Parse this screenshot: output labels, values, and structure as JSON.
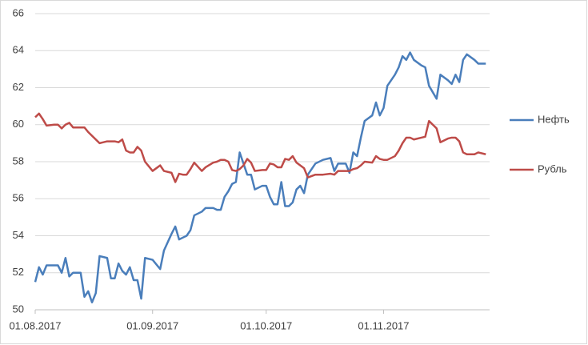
{
  "chart_data": {
    "type": "line",
    "x": [
      0,
      1,
      2,
      3,
      5,
      6,
      7,
      8,
      9,
      10,
      12,
      13,
      14,
      15,
      16,
      17,
      19,
      20,
      21,
      22,
      23,
      24,
      25,
      26,
      27,
      28,
      29,
      31,
      33,
      34,
      36,
      37,
      38,
      39,
      40,
      41,
      42,
      44,
      45,
      47,
      48,
      49,
      50,
      51,
      52,
      53,
      54,
      55,
      56,
      57,
      58,
      60,
      61,
      62,
      63,
      64,
      65,
      66,
      67,
      68,
      69,
      70,
      71,
      72,
      74,
      76,
      78,
      79,
      80,
      82,
      83,
      84,
      85,
      86,
      87,
      89,
      90,
      91,
      92,
      93,
      95,
      96,
      97,
      98,
      99,
      100,
      102,
      103,
      104,
      106,
      107,
      109,
      110,
      111,
      112,
      113,
      114,
      116,
      117,
      119
    ],
    "series": [
      {
        "name": "Нефть",
        "color": "#4a7ebb",
        "values": [
          51.5,
          52.3,
          51.9,
          52.4,
          52.4,
          52.4,
          52.0,
          52.8,
          51.8,
          52.0,
          52.0,
          50.7,
          51.0,
          50.4,
          50.9,
          52.9,
          52.8,
          51.7,
          51.7,
          52.5,
          52.1,
          51.9,
          52.3,
          51.6,
          51.6,
          50.6,
          52.8,
          52.7,
          52.2,
          53.2,
          54.1,
          54.5,
          53.8,
          53.9,
          54.0,
          54.3,
          55.1,
          55.3,
          55.5,
          55.5,
          55.4,
          55.4,
          56.1,
          56.4,
          56.8,
          56.9,
          58.5,
          57.9,
          57.3,
          57.3,
          56.5,
          56.7,
          56.7,
          56.1,
          55.7,
          55.7,
          56.9,
          55.6,
          55.6,
          55.8,
          56.5,
          56.7,
          56.3,
          57.3,
          57.9,
          58.1,
          58.2,
          57.5,
          57.9,
          57.9,
          57.4,
          58.5,
          58.3,
          59.3,
          60.2,
          60.5,
          61.2,
          60.5,
          60.9,
          62.1,
          62.7,
          63.1,
          63.7,
          63.5,
          63.9,
          63.5,
          63.2,
          63.1,
          62.1,
          61.4,
          62.7,
          62.4,
          62.2,
          62.7,
          62.3,
          63.5,
          63.8,
          63.5,
          63.3,
          63.3
        ]
      },
      {
        "name": "Рубль",
        "color": "#be4b48",
        "values": [
          60.4,
          60.6,
          60.3,
          59.95,
          60.0,
          60.0,
          59.8,
          60.0,
          60.1,
          59.85,
          59.85,
          59.85,
          59.6,
          59.4,
          59.2,
          59.0,
          59.1,
          59.1,
          59.1,
          59.05,
          59.2,
          58.6,
          58.5,
          58.5,
          58.8,
          58.6,
          58.0,
          57.5,
          57.8,
          57.5,
          57.4,
          56.9,
          57.35,
          57.3,
          57.3,
          57.6,
          57.95,
          57.5,
          57.7,
          57.95,
          58.0,
          58.1,
          58.1,
          58.0,
          57.55,
          57.5,
          57.6,
          57.8,
          58.15,
          57.95,
          57.5,
          57.55,
          57.55,
          57.9,
          57.85,
          57.7,
          57.7,
          58.15,
          58.1,
          58.3,
          57.95,
          57.8,
          57.65,
          57.15,
          57.3,
          57.3,
          57.35,
          57.3,
          57.5,
          57.5,
          57.5,
          57.6,
          57.65,
          57.8,
          58.0,
          57.95,
          58.3,
          58.15,
          58.1,
          58.1,
          58.3,
          58.6,
          59.0,
          59.3,
          59.3,
          59.2,
          59.3,
          59.35,
          60.2,
          59.8,
          59.05,
          59.25,
          59.3,
          59.3,
          59.1,
          58.5,
          58.4,
          58.4,
          58.5,
          58.4
        ]
      }
    ],
    "xlim": [
      0,
      120
    ],
    "xticks": [
      {
        "value": 0,
        "label": "01.08.2017"
      },
      {
        "value": 31,
        "label": "01.09.2017"
      },
      {
        "value": 61,
        "label": "01.10.2017"
      },
      {
        "value": 92,
        "label": "01.11.2017"
      }
    ],
    "ylim": [
      50,
      66
    ],
    "yticks": [
      50,
      52,
      54,
      56,
      58,
      60,
      62,
      64,
      66
    ],
    "grid": true,
    "legend": "right"
  }
}
